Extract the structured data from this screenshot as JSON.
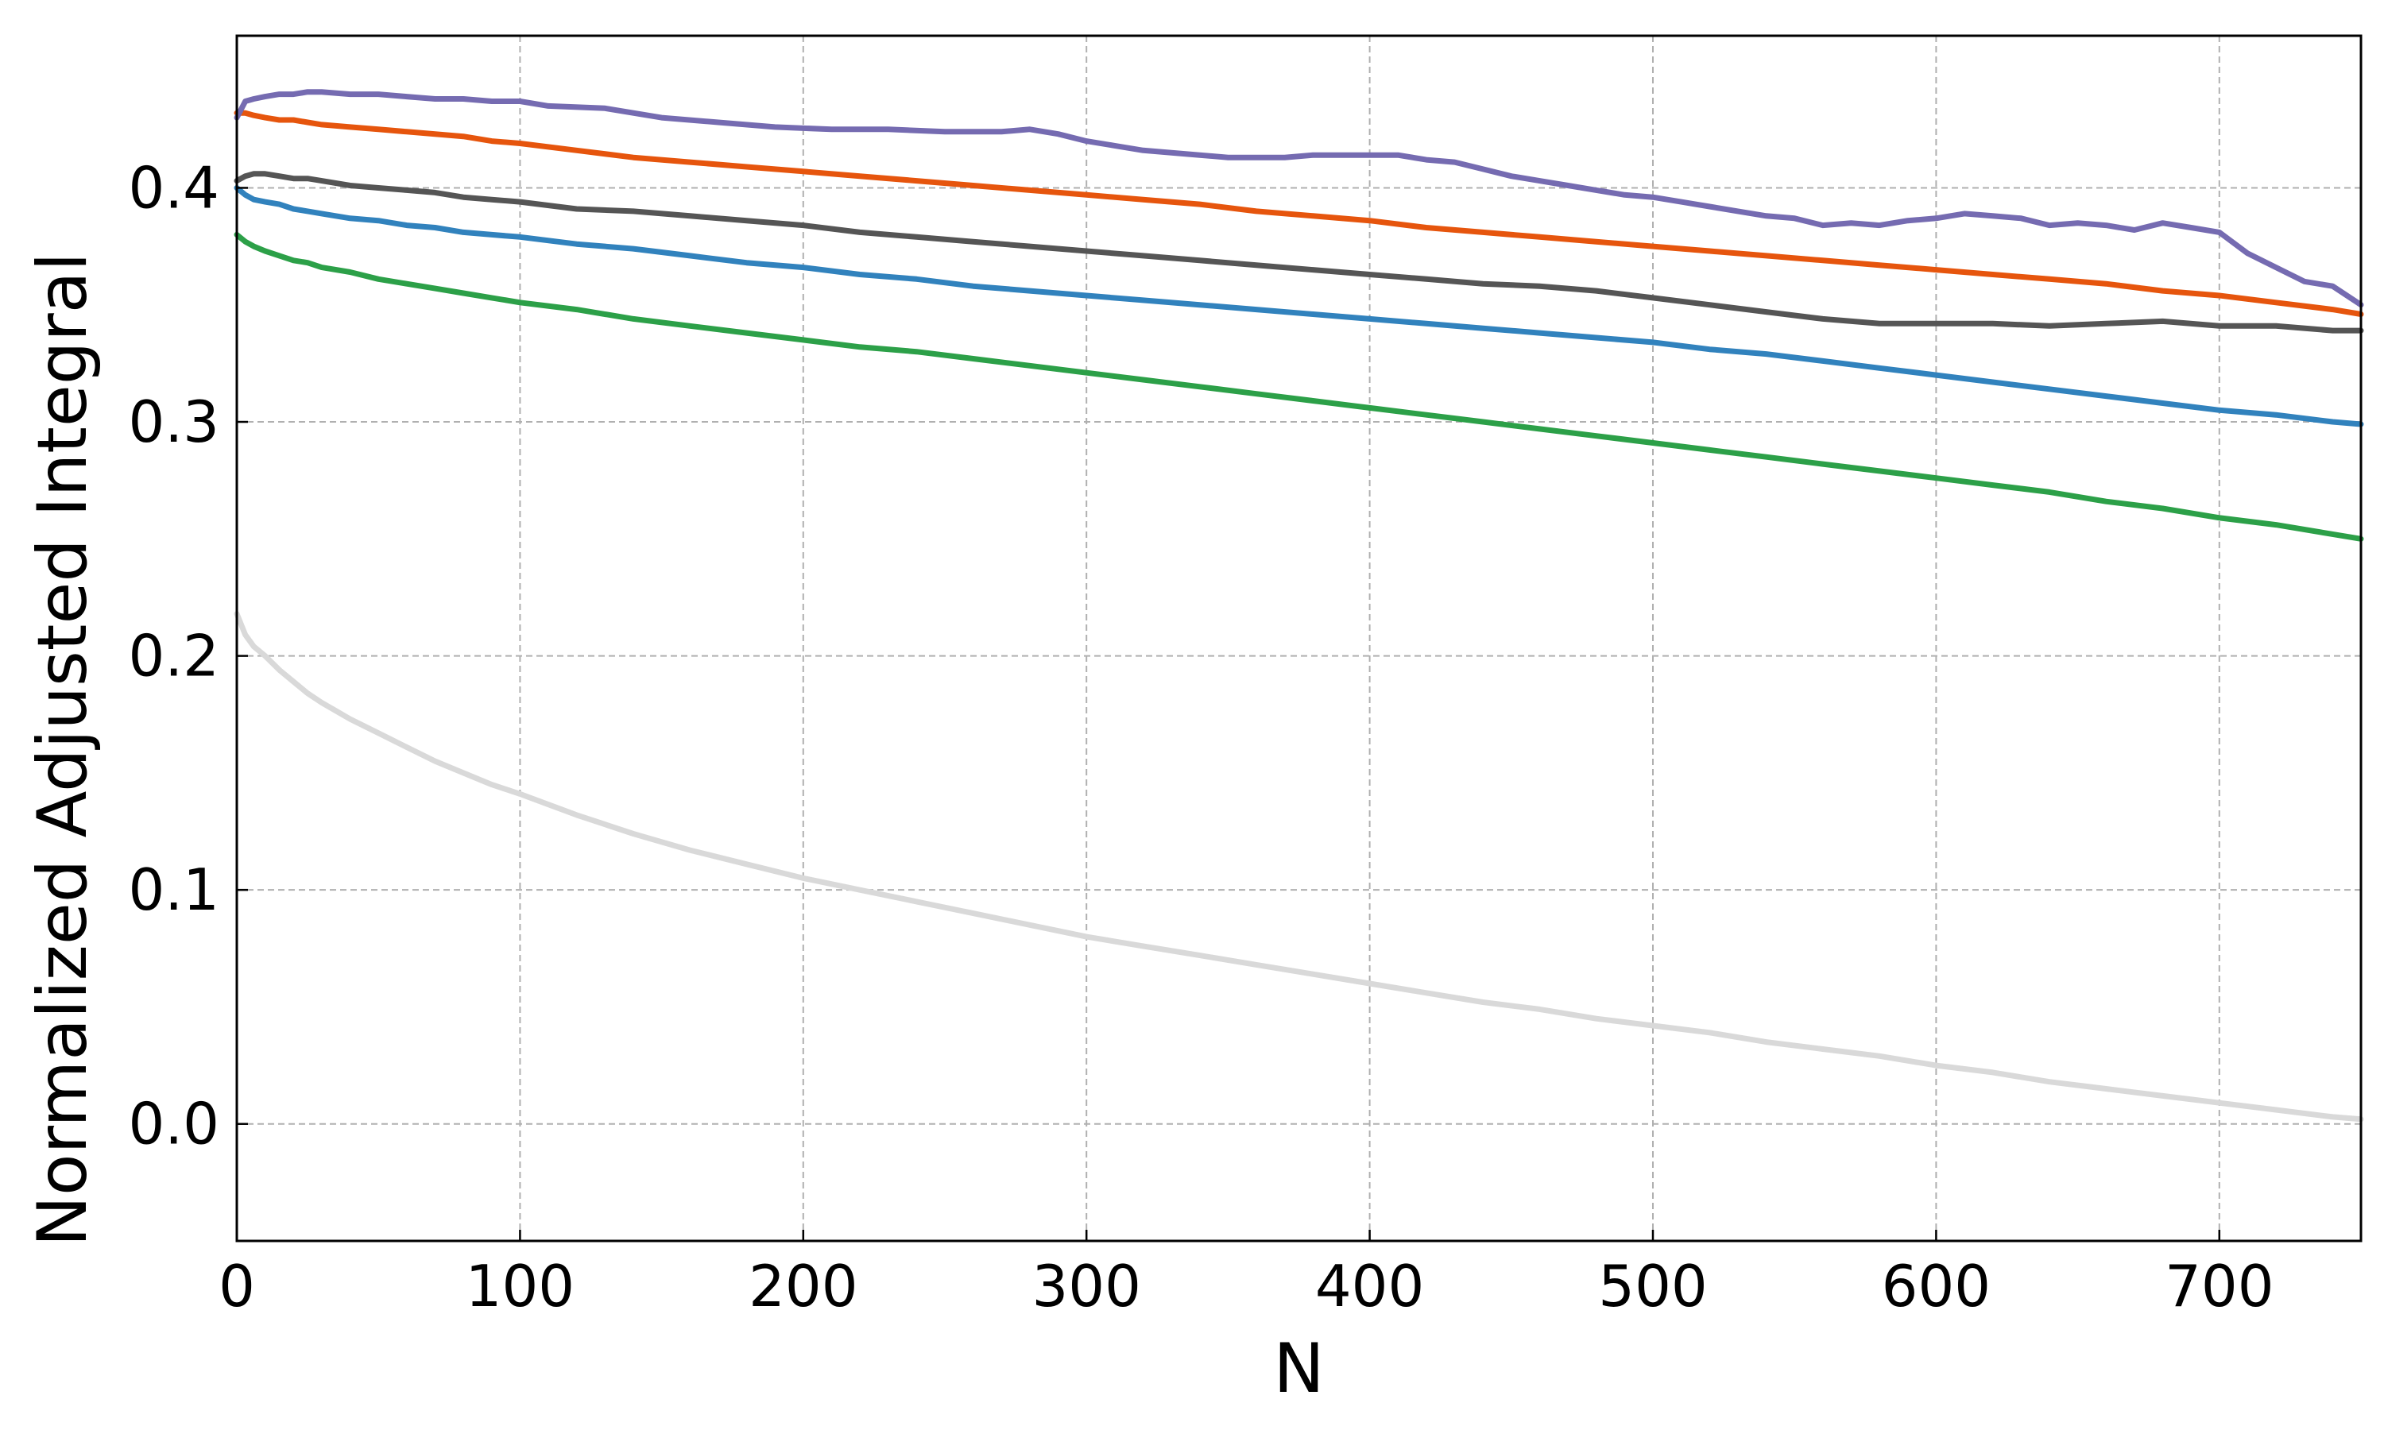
{
  "chart_data": {
    "type": "line",
    "title": "",
    "xlabel": "N",
    "ylabel": "Normalized Adjusted Integral",
    "xlim": [
      0,
      750
    ],
    "ylim": [
      -0.05,
      0.465
    ],
    "xticks": [
      0,
      100,
      200,
      300,
      400,
      500,
      600,
      700
    ],
    "xtick_labels": [
      "0",
      "100",
      "200",
      "300",
      "400",
      "500",
      "600",
      "700"
    ],
    "yticks": [
      0.0,
      0.1,
      0.2,
      0.3,
      0.4
    ],
    "ytick_labels": [
      "0.0",
      "0.1",
      "0.2",
      "0.3",
      "0.4"
    ],
    "grid": true,
    "legend": "none",
    "series": [
      {
        "color": "#d9d9d9",
        "x": [
          0,
          3,
          6,
          10,
          15,
          20,
          25,
          30,
          40,
          50,
          60,
          70,
          80,
          90,
          100,
          120,
          140,
          160,
          180,
          200,
          220,
          240,
          260,
          280,
          300,
          320,
          340,
          360,
          380,
          400,
          420,
          440,
          460,
          480,
          500,
          520,
          540,
          560,
          580,
          600,
          620,
          640,
          660,
          680,
          700,
          720,
          740,
          750
        ],
        "y": [
          0.218,
          0.209,
          0.204,
          0.2,
          0.194,
          0.189,
          0.184,
          0.18,
          0.173,
          0.167,
          0.161,
          0.155,
          0.15,
          0.145,
          0.141,
          0.132,
          0.124,
          0.117,
          0.111,
          0.105,
          0.1,
          0.095,
          0.09,
          0.085,
          0.08,
          0.076,
          0.072,
          0.068,
          0.064,
          0.06,
          0.056,
          0.052,
          0.049,
          0.045,
          0.042,
          0.039,
          0.035,
          0.032,
          0.029,
          0.025,
          0.022,
          0.018,
          0.015,
          0.012,
          0.009,
          0.006,
          0.003,
          0.002
        ]
      },
      {
        "color": "#2ca048",
        "x": [
          0,
          3,
          6,
          10,
          15,
          20,
          25,
          30,
          40,
          50,
          60,
          70,
          80,
          90,
          100,
          120,
          140,
          160,
          180,
          200,
          220,
          240,
          260,
          280,
          300,
          320,
          340,
          360,
          380,
          400,
          420,
          440,
          460,
          480,
          500,
          520,
          540,
          560,
          580,
          600,
          620,
          640,
          660,
          680,
          700,
          720,
          740,
          750
        ],
        "y": [
          0.38,
          0.377,
          0.375,
          0.373,
          0.371,
          0.369,
          0.368,
          0.366,
          0.364,
          0.361,
          0.359,
          0.357,
          0.355,
          0.353,
          0.351,
          0.348,
          0.344,
          0.341,
          0.338,
          0.335,
          0.332,
          0.33,
          0.327,
          0.324,
          0.321,
          0.318,
          0.315,
          0.312,
          0.309,
          0.306,
          0.303,
          0.3,
          0.297,
          0.294,
          0.291,
          0.288,
          0.285,
          0.282,
          0.279,
          0.276,
          0.273,
          0.27,
          0.266,
          0.263,
          0.259,
          0.256,
          0.252,
          0.25
        ]
      },
      {
        "color": "#3182bd",
        "x": [
          0,
          3,
          6,
          10,
          15,
          20,
          25,
          30,
          40,
          50,
          60,
          70,
          80,
          90,
          100,
          120,
          140,
          160,
          180,
          200,
          220,
          240,
          260,
          280,
          300,
          320,
          340,
          360,
          380,
          400,
          420,
          440,
          460,
          480,
          500,
          520,
          540,
          560,
          580,
          600,
          620,
          640,
          660,
          680,
          700,
          720,
          740,
          750
        ],
        "y": [
          0.4,
          0.397,
          0.395,
          0.394,
          0.393,
          0.391,
          0.39,
          0.389,
          0.387,
          0.386,
          0.384,
          0.383,
          0.381,
          0.38,
          0.379,
          0.376,
          0.374,
          0.371,
          0.368,
          0.366,
          0.363,
          0.361,
          0.358,
          0.356,
          0.354,
          0.352,
          0.35,
          0.348,
          0.346,
          0.344,
          0.342,
          0.34,
          0.338,
          0.336,
          0.334,
          0.331,
          0.329,
          0.326,
          0.323,
          0.32,
          0.317,
          0.314,
          0.311,
          0.308,
          0.305,
          0.303,
          0.3,
          0.299
        ]
      },
      {
        "color": "#555555",
        "x": [
          0,
          3,
          6,
          10,
          15,
          20,
          25,
          30,
          40,
          50,
          60,
          70,
          80,
          90,
          100,
          120,
          140,
          160,
          180,
          200,
          220,
          240,
          260,
          280,
          300,
          320,
          340,
          360,
          380,
          400,
          420,
          440,
          460,
          480,
          500,
          520,
          540,
          560,
          580,
          600,
          620,
          640,
          660,
          680,
          700,
          720,
          740,
          750
        ],
        "y": [
          0.403,
          0.405,
          0.406,
          0.406,
          0.405,
          0.404,
          0.404,
          0.403,
          0.401,
          0.4,
          0.399,
          0.398,
          0.396,
          0.395,
          0.394,
          0.391,
          0.39,
          0.388,
          0.386,
          0.384,
          0.381,
          0.379,
          0.377,
          0.375,
          0.373,
          0.371,
          0.369,
          0.367,
          0.365,
          0.363,
          0.361,
          0.359,
          0.358,
          0.356,
          0.353,
          0.35,
          0.347,
          0.344,
          0.342,
          0.342,
          0.342,
          0.341,
          0.342,
          0.343,
          0.341,
          0.341,
          0.339,
          0.339
        ]
      },
      {
        "color": "#e6550d",
        "x": [
          0,
          3,
          6,
          10,
          15,
          20,
          25,
          30,
          40,
          50,
          60,
          70,
          80,
          90,
          100,
          120,
          140,
          160,
          180,
          200,
          220,
          240,
          260,
          280,
          300,
          320,
          340,
          360,
          380,
          400,
          420,
          440,
          460,
          480,
          500,
          520,
          540,
          560,
          580,
          600,
          620,
          640,
          660,
          680,
          700,
          720,
          740,
          750
        ],
        "y": [
          0.432,
          0.432,
          0.431,
          0.43,
          0.429,
          0.429,
          0.428,
          0.427,
          0.426,
          0.425,
          0.424,
          0.423,
          0.422,
          0.42,
          0.419,
          0.416,
          0.413,
          0.411,
          0.409,
          0.407,
          0.405,
          0.403,
          0.401,
          0.399,
          0.397,
          0.395,
          0.393,
          0.39,
          0.388,
          0.386,
          0.383,
          0.381,
          0.379,
          0.377,
          0.375,
          0.373,
          0.371,
          0.369,
          0.367,
          0.365,
          0.363,
          0.361,
          0.359,
          0.356,
          0.354,
          0.351,
          0.348,
          0.346
        ]
      },
      {
        "color": "#756bb1",
        "x": [
          0,
          3,
          6,
          10,
          15,
          20,
          25,
          30,
          40,
          50,
          60,
          70,
          80,
          90,
          100,
          110,
          130,
          150,
          170,
          190,
          210,
          230,
          250,
          270,
          280,
          290,
          300,
          310,
          320,
          340,
          350,
          360,
          370,
          380,
          390,
          400,
          410,
          420,
          430,
          440,
          450,
          460,
          470,
          480,
          490,
          500,
          510,
          520,
          530,
          540,
          550,
          560,
          570,
          580,
          590,
          600,
          610,
          620,
          630,
          640,
          650,
          660,
          670,
          680,
          690,
          700,
          710,
          720,
          730,
          740,
          750
        ],
        "y": [
          0.43,
          0.437,
          0.438,
          0.439,
          0.44,
          0.44,
          0.441,
          0.441,
          0.44,
          0.44,
          0.439,
          0.438,
          0.438,
          0.437,
          0.437,
          0.435,
          0.434,
          0.43,
          0.428,
          0.426,
          0.425,
          0.425,
          0.424,
          0.424,
          0.425,
          0.423,
          0.42,
          0.418,
          0.416,
          0.414,
          0.413,
          0.413,
          0.413,
          0.414,
          0.414,
          0.414,
          0.414,
          0.412,
          0.411,
          0.408,
          0.405,
          0.403,
          0.401,
          0.399,
          0.397,
          0.396,
          0.394,
          0.392,
          0.39,
          0.388,
          0.387,
          0.384,
          0.385,
          0.384,
          0.386,
          0.387,
          0.389,
          0.388,
          0.387,
          0.384,
          0.385,
          0.384,
          0.382,
          0.385,
          0.383,
          0.381,
          0.372,
          0.366,
          0.36,
          0.358,
          0.35
        ]
      }
    ]
  }
}
